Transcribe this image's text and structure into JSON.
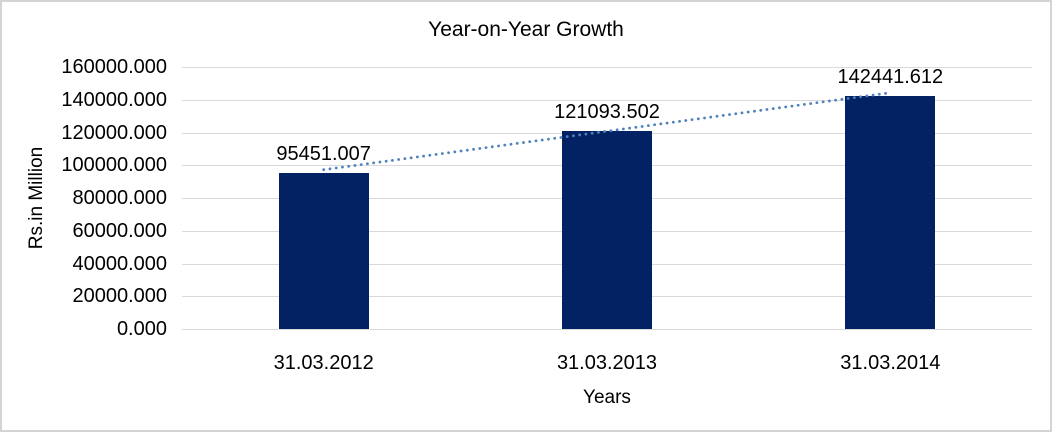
{
  "chart_data": {
    "type": "bar",
    "title": "Year-on-Year Growth",
    "xlabel": "Years",
    "ylabel": "Rs.in Million",
    "categories": [
      "31.03.2012",
      "31.03.2013",
      "31.03.2014"
    ],
    "values": [
      95451.007,
      121093.502,
      142441.612
    ],
    "data_labels": [
      "95451.007",
      "121093.502",
      "142441.612"
    ],
    "y_ticks": [
      "160000.000",
      "140000.000",
      "120000.000",
      "100000.000",
      "80000.000",
      "60000.000",
      "40000.000",
      "20000.000",
      "0.000"
    ],
    "ylim": [
      0,
      160000
    ],
    "grid": true,
    "legend": "none",
    "bar_color": "#032263",
    "gridline_color": "#d9d9d9",
    "frame_border_color": "#d4d4d4",
    "text_color": "#000000",
    "trendline": {
      "type": "linear",
      "style": "dotted",
      "color": "#4f81bd"
    }
  }
}
